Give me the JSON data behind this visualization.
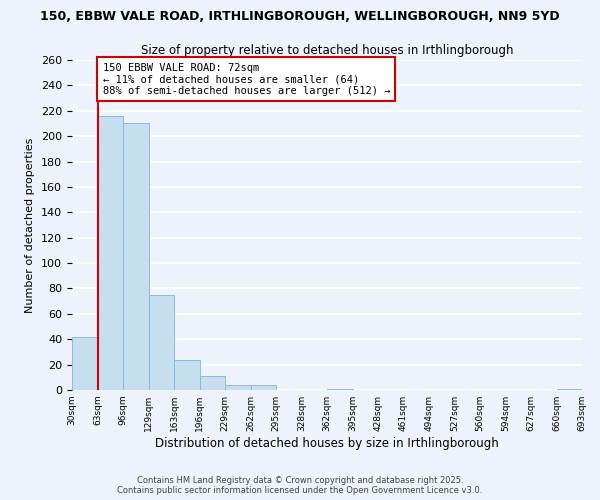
{
  "title_line1": "150, EBBW VALE ROAD, IRTHLINGBOROUGH, WELLINGBOROUGH, NN9 5YD",
  "title_line2": "Size of property relative to detached houses in Irthlingborough",
  "xlabel": "Distribution of detached houses by size in Irthlingborough",
  "ylabel": "Number of detached properties",
  "bar_values": [
    42,
    216,
    210,
    75,
    24,
    11,
    4,
    4,
    0,
    0,
    1,
    0,
    0,
    0,
    0,
    0,
    0,
    0,
    0,
    1
  ],
  "bin_labels": [
    "30sqm",
    "63sqm",
    "96sqm",
    "129sqm",
    "163sqm",
    "196sqm",
    "229sqm",
    "262sqm",
    "295sqm",
    "328sqm",
    "362sqm",
    "395sqm",
    "428sqm",
    "461sqm",
    "494sqm",
    "527sqm",
    "560sqm",
    "594sqm",
    "627sqm",
    "660sqm",
    "693sqm"
  ],
  "bar_color": "#c5dff0",
  "bar_edge_color": "#8bbdd9",
  "ylim": [
    0,
    260
  ],
  "yticks": [
    0,
    20,
    40,
    60,
    80,
    100,
    120,
    140,
    160,
    180,
    200,
    220,
    240,
    260
  ],
  "annotation_title": "150 EBBW VALE ROAD: 72sqm",
  "annotation_line2": "← 11% of detached houses are smaller (64)",
  "annotation_line3": "88% of semi-detached houses are larger (512) →",
  "annotation_box_color": "#ffffff",
  "annotation_box_edge_color": "#cc0000",
  "red_line_color": "#cc0000",
  "footer_line1": "Contains HM Land Registry data © Crown copyright and database right 2025.",
  "footer_line2": "Contains public sector information licensed under the Open Government Licence v3.0.",
  "background_color": "#eef2fb",
  "grid_color": "#ffffff"
}
